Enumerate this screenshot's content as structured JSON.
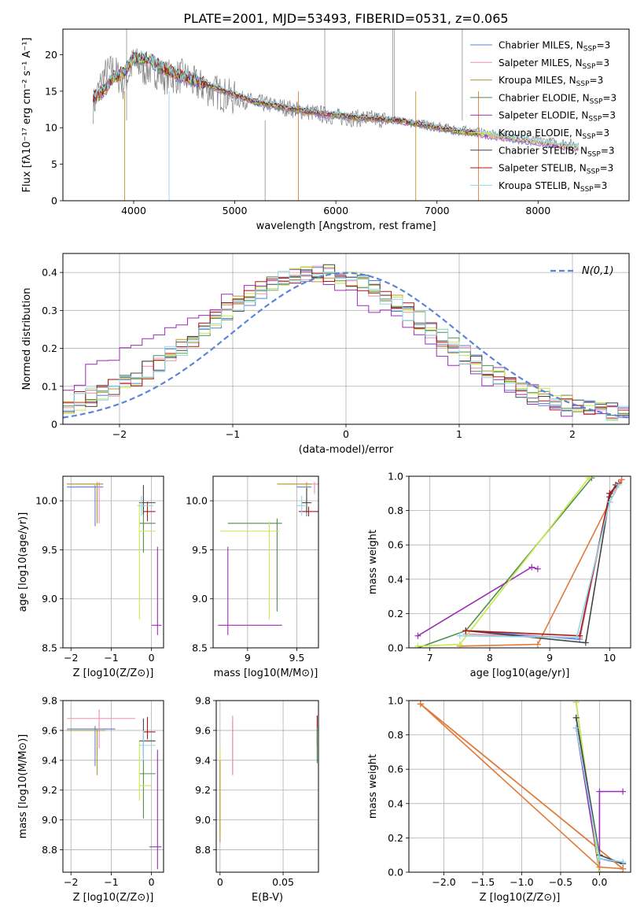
{
  "figure_title": "PLATE=2001, MJD=53493, FIBERID=0531, z=0.065",
  "models": [
    {
      "name": "Chabrier MILES",
      "color": "#5b7fd6"
    },
    {
      "name": "Salpeter MILES",
      "color": "#f08fb0"
    },
    {
      "name": "Kroupa MILES",
      "color": "#b8982a"
    },
    {
      "name": "Chabrier ELODIE",
      "color": "#4e8f4e"
    },
    {
      "name": "Salpeter ELODIE",
      "color": "#9a2fb6"
    },
    {
      "name": "Kroupa ELODIE",
      "color": "#c8e84e"
    },
    {
      "name": "Chabrier STELIB",
      "color": "#444444"
    },
    {
      "name": "Salpeter STELIB",
      "color": "#b01818"
    },
    {
      "name": "Kroupa STELIB",
      "color": "#8fd6e8"
    }
  ],
  "legend_suffix_pre": "N",
  "legend_suffix_sub": "SSP",
  "legend_suffix_post": "=3",
  "chart_data": [
    {
      "id": "spectrum",
      "type": "line",
      "xlabel": "wavelength [Angstrom, rest frame]",
      "ylabel": "Flux [fλ10⁻¹⁷ erg cm⁻² s⁻¹ A⁻¹]",
      "xlim": [
        3300,
        8900
      ],
      "ylim": [
        0,
        23.5
      ],
      "xticks": [
        4000,
        5000,
        6000,
        7000,
        8000
      ],
      "yticks": [
        0,
        5,
        10,
        15,
        20
      ],
      "legend": "top-right",
      "observed": {
        "color": "#808080",
        "x": [
          3600,
          3700,
          3800,
          3900,
          4000,
          4100,
          4200,
          4300,
          4400,
          4500,
          4600,
          4800,
          5000,
          5200,
          5400,
          5600,
          5800,
          6000,
          6200,
          6400,
          6600,
          6800,
          7000,
          7200,
          7400,
          7600,
          7800,
          8000,
          8200,
          8400
        ],
        "y": [
          13,
          17,
          18,
          16,
          19,
          18,
          18,
          17,
          17,
          17,
          16,
          15,
          14,
          13.5,
          13,
          12.5,
          12,
          11.5,
          11.3,
          11.2,
          11,
          10.7,
          10.2,
          9.8,
          9.5,
          9,
          8.6,
          8.3,
          8,
          7.8
        ]
      },
      "model_curve": {
        "x": [
          3600,
          3700,
          3800,
          3900,
          4000,
          4100,
          4200,
          4300,
          4400,
          4500,
          4600,
          4800,
          5000,
          5200,
          5400,
          5600,
          5800,
          6000,
          6200,
          6400,
          6600,
          6800,
          7000,
          7200,
          7400,
          7600,
          7800,
          8000,
          8200,
          8400
        ],
        "y": [
          14,
          15,
          17,
          17.5,
          19.5,
          19.5,
          19,
          18,
          17.5,
          17,
          16.5,
          15.5,
          14.5,
          13.5,
          13,
          12.5,
          12,
          11.7,
          11.4,
          11.2,
          11,
          10.5,
          10,
          9.5,
          9.2,
          8.8,
          8.4,
          8,
          7.6,
          7.2
        ]
      },
      "x_end": [
        8400,
        8400,
        7400,
        7400,
        8400,
        8400,
        7400,
        7400,
        8400
      ]
    },
    {
      "id": "residual-hist",
      "type": "step",
      "xlabel": "(data-model)/error",
      "ylabel": "Normed distribution",
      "xlim": [
        -2.5,
        2.5
      ],
      "ylim": [
        0,
        0.45
      ],
      "xticks": [
        -2,
        -1,
        0,
        1,
        2
      ],
      "yticks": [
        0,
        0.1,
        0.2,
        0.3,
        0.4
      ],
      "grid": true,
      "legend": "top-right",
      "normal_curve": {
        "label": "N(0,1)",
        "color": "#5b86d8",
        "mu": 0,
        "sigma": 1
      }
    },
    {
      "id": "age-vs-Z",
      "type": "errorbar",
      "xlabel": "Z [log10(Z/Z⊙)]",
      "ylabel": "age [log10(age/yr)]",
      "xlim": [
        -2.2,
        0.3
      ],
      "ylim": [
        8.5,
        10.25
      ],
      "xticks": [
        -2,
        -1,
        0
      ],
      "yticks": [
        8.5,
        9.0,
        9.5,
        10.0
      ],
      "grid": true,
      "points": [
        {
          "x": -1.4,
          "y": 10.14,
          "xerr": [
            0.7,
            0.2
          ],
          "yerr": [
            0.4,
            0.02
          ]
        },
        {
          "x": -1.3,
          "y": 10.17,
          "xerr": [
            0.8,
            0.1
          ],
          "yerr": [
            0.4,
            0.02
          ]
        },
        {
          "x": -1.35,
          "y": 10.17,
          "xerr": [
            0.75,
            0.15
          ],
          "yerr": [
            0.4,
            0.02
          ]
        },
        {
          "x": -0.2,
          "y": 9.77,
          "xerr": [
            0.1,
            0.3
          ],
          "yerr": [
            0.3,
            0.2
          ]
        },
        {
          "x": 0.15,
          "y": 8.73,
          "xerr": [
            0.15,
            0.1
          ],
          "yerr": [
            0.1,
            0.8
          ]
        },
        {
          "x": -0.3,
          "y": 9.69,
          "xerr": [
            0.0,
            0.4
          ],
          "yerr": [
            0.9,
            0.3
          ]
        },
        {
          "x": -0.2,
          "y": 9.98,
          "xerr": [
            0.1,
            0.3
          ],
          "yerr": [
            0.12,
            0.18
          ]
        },
        {
          "x": -0.1,
          "y": 9.89,
          "xerr": [
            0.1,
            0.2
          ],
          "yerr": [
            0.1,
            0.1
          ]
        },
        {
          "x": -0.25,
          "y": 9.95,
          "xerr": [
            0.1,
            0.3
          ],
          "yerr": [
            0.1,
            0.1
          ]
        }
      ]
    },
    {
      "id": "age-vs-mass",
      "type": "errorbar",
      "xlabel": "mass [log10(M/M⊙)]",
      "ylabel": "",
      "xlim": [
        8.65,
        9.72
      ],
      "ylim": [
        8.5,
        10.25
      ],
      "xticks": [
        9.0,
        9.5
      ],
      "yticks": [
        8.5,
        9.0,
        9.5,
        10.0
      ],
      "grid": true,
      "points": [
        {
          "x": 9.6,
          "y": 10.14,
          "xerr": [
            0.1,
            0.05
          ],
          "yerr": [
            0.3,
            0.02
          ]
        },
        {
          "x": 9.68,
          "y": 10.17,
          "xerr": [
            0.3,
            0.05
          ],
          "yerr": [
            0.1,
            0.02
          ]
        },
        {
          "x": 9.6,
          "y": 10.17,
          "xerr": [
            0.3,
            0.05
          ],
          "yerr": [
            0.2,
            0.02
          ]
        },
        {
          "x": 9.3,
          "y": 9.77,
          "xerr": [
            0.5,
            0.05
          ],
          "yerr": [
            0.9,
            0.05
          ]
        },
        {
          "x": 8.8,
          "y": 8.73,
          "xerr": [
            0.1,
            0.55
          ],
          "yerr": [
            0.1,
            0.8
          ]
        },
        {
          "x": 9.22,
          "y": 9.69,
          "xerr": [
            0.5,
            0.1
          ],
          "yerr": [
            0.9,
            0.1
          ]
        },
        {
          "x": 9.6,
          "y": 9.98,
          "xerr": [
            0.05,
            0.05
          ],
          "yerr": [
            0.1,
            0.15
          ]
        },
        {
          "x": 9.62,
          "y": 9.89,
          "xerr": [
            0.1,
            0.1
          ],
          "yerr": [
            0.05,
            0.05
          ]
        },
        {
          "x": 9.55,
          "y": 9.95,
          "xerr": [
            0.05,
            0.05
          ],
          "yerr": [
            0.1,
            0.1
          ]
        }
      ]
    },
    {
      "id": "massweight-vs-age",
      "type": "line",
      "xlabel": "age [log10(age/yr)]",
      "ylabel": "mass weight",
      "xlim": [
        6.65,
        10.35
      ],
      "ylim": [
        0,
        1
      ],
      "xticks": [
        7,
        8,
        9,
        10
      ],
      "yticks": [
        0,
        0.2,
        0.4,
        0.6,
        0.8,
        1.0
      ],
      "grid": true,
      "series": [
        {
          "x": [
            7.6,
            9.5,
            10.0,
            10.2
          ],
          "y": [
            0.1,
            0.05,
            0.9,
            0.98
          ]
        },
        {
          "x": [
            7.6,
            9.5,
            10.0,
            10.2
          ],
          "y": [
            0.08,
            0.06,
            0.88,
            0.98
          ]
        },
        {
          "x": [
            7.5,
            8.8,
            10.0,
            10.2
          ],
          "y": [
            0.01,
            0.02,
            0.85,
            0.98
          ]
        },
        {
          "x": [
            6.8,
            7.6,
            9.7
          ],
          "y": [
            0.0,
            0.1,
            0.99
          ]
        },
        {
          "x": [
            6.8,
            8.7,
            8.8
          ],
          "y": [
            0.07,
            0.47,
            0.46
          ]
        },
        {
          "x": [
            6.8,
            7.5,
            9.65
          ],
          "y": [
            0.01,
            0.02,
            0.99
          ]
        },
        {
          "x": [
            7.6,
            9.6,
            10.0,
            10.1
          ],
          "y": [
            0.1,
            0.03,
            0.88,
            0.95
          ]
        },
        {
          "x": [
            7.6,
            9.5,
            10.0,
            10.15
          ],
          "y": [
            0.1,
            0.07,
            0.9,
            0.96
          ]
        },
        {
          "x": [
            7.5,
            9.45,
            10.0,
            10.15
          ],
          "y": [
            0.07,
            0.06,
            0.85,
            0.95
          ]
        }
      ]
    },
    {
      "id": "mass-vs-Z",
      "type": "errorbar",
      "xlabel": "Z [log10(Z/Z⊙)]",
      "ylabel": "mass [log10(M/M⊙)]",
      "xlim": [
        -2.2,
        0.3
      ],
      "ylim": [
        8.65,
        9.8
      ],
      "xticks": [
        -2,
        -1,
        0
      ],
      "yticks": [
        8.8,
        9.0,
        9.2,
        9.4,
        9.6,
        9.8
      ],
      "grid": true,
      "points": [
        {
          "x": -1.4,
          "y": 9.61,
          "xerr": [
            0.7,
            0.5
          ],
          "yerr": [
            0.25,
            0.02
          ]
        },
        {
          "x": -1.3,
          "y": 9.68,
          "xerr": [
            0.8,
            0.9
          ],
          "yerr": [
            0.2,
            0.06
          ]
        },
        {
          "x": -1.35,
          "y": 9.6,
          "xerr": [
            0.75,
            0.2
          ],
          "yerr": [
            0.3,
            0.01
          ]
        },
        {
          "x": -0.2,
          "y": 9.31,
          "xerr": [
            0.1,
            0.3
          ],
          "yerr": [
            0.3,
            0.2
          ]
        },
        {
          "x": 0.15,
          "y": 8.82,
          "xerr": [
            0.2,
            0.1
          ],
          "yerr": [
            0.15,
            0.65
          ]
        },
        {
          "x": -0.3,
          "y": 9.23,
          "xerr": [
            0.0,
            0.3
          ],
          "yerr": [
            0.1,
            0.3
          ]
        },
        {
          "x": -0.2,
          "y": 9.53,
          "xerr": [
            0.1,
            0.3
          ],
          "yerr": [
            0.1,
            0.15
          ]
        },
        {
          "x": -0.1,
          "y": 9.59,
          "xerr": [
            0.1,
            0.2
          ],
          "yerr": [
            0.05,
            0.1
          ]
        },
        {
          "x": -0.2,
          "y": 9.5,
          "xerr": [
            0.1,
            0.3
          ],
          "yerr": [
            0.1,
            0.1
          ]
        }
      ]
    },
    {
      "id": "mass-vs-EBV",
      "type": "errorbar",
      "xlabel": "E(B-V)",
      "ylabel": "",
      "xlim": [
        -0.003,
        0.078
      ],
      "ylim": [
        8.65,
        9.8
      ],
      "xticks": [
        0.0,
        0.05
      ],
      "yticks": [
        8.8,
        9.0,
        9.2,
        9.4,
        9.6,
        9.8
      ],
      "grid": true,
      "points": [
        {
          "x": 0.0,
          "y": 9.2,
          "xerr": [
            0,
            0
          ],
          "yerr": [
            0.3,
            0.3
          ]
        },
        {
          "x": 0.0,
          "y": 9.3,
          "xerr": [
            0,
            0
          ],
          "yerr": [
            0.45,
            0.1
          ]
        },
        {
          "x": 0.01,
          "y": 9.48,
          "xerr": [
            0,
            0
          ],
          "yerr": [
            0.17,
            0.19
          ]
        },
        {
          "x": 0.01,
          "y": 9.5,
          "xerr": [
            0,
            0
          ],
          "yerr": [
            0.2,
            0.2
          ]
        },
        {
          "x": 0.077,
          "y": 9.55,
          "xerr": [
            0,
            0
          ],
          "yerr": [
            0.15,
            0.15
          ]
        },
        {
          "x": 0.077,
          "y": 9.6,
          "xerr": [
            0,
            0
          ],
          "yerr": [
            0.1,
            0.1
          ]
        },
        {
          "x": 0.077,
          "y": 9.5,
          "xerr": [
            0,
            0
          ],
          "yerr": [
            0.12,
            0.12
          ]
        }
      ]
    },
    {
      "id": "massweight-vs-Z",
      "type": "line",
      "xlabel": "Z [log10(Z/Z⊙)]",
      "ylabel": "mass weight",
      "xlim": [
        -2.45,
        0.4
      ],
      "ylim": [
        0,
        1
      ],
      "xticks": [
        -2.0,
        -1.5,
        -1.0,
        -0.5,
        0.0
      ],
      "yticks": [
        0,
        0.2,
        0.4,
        0.6,
        0.8,
        1.0
      ],
      "grid": true,
      "series": [
        {
          "x": [
            -0.3,
            0.0,
            0.3
          ],
          "y": [
            0.9,
            0.08,
            0.05
          ]
        },
        {
          "x": [
            -2.3,
            0.3
          ],
          "y": [
            0.98,
            0.02
          ]
        },
        {
          "x": [
            -2.3,
            0.3
          ],
          "y": [
            0.98,
            0.02
          ]
        },
        {
          "x": [
            -0.3,
            0.0,
            0.3
          ],
          "y": [
            0.99,
            0.0,
            0.0
          ]
        },
        {
          "x": [
            -0.3,
            0.0,
            0.0,
            0.3
          ],
          "y": [
            0.84,
            0.0,
            0.47,
            0.47
          ]
        },
        {
          "x": [
            -0.3,
            0.0
          ],
          "y": [
            0.99,
            0.0
          ]
        },
        {
          "x": [
            -0.3,
            0.0,
            0.3
          ],
          "y": [
            0.9,
            0.1,
            0.05
          ]
        },
        {
          "x": [
            -2.3,
            0.0,
            0.3
          ],
          "y": [
            0.98,
            0.03,
            0.02
          ]
        },
        {
          "x": [
            -0.3,
            0.0,
            0.3
          ],
          "y": [
            0.84,
            0.08,
            0.06
          ]
        }
      ]
    }
  ]
}
